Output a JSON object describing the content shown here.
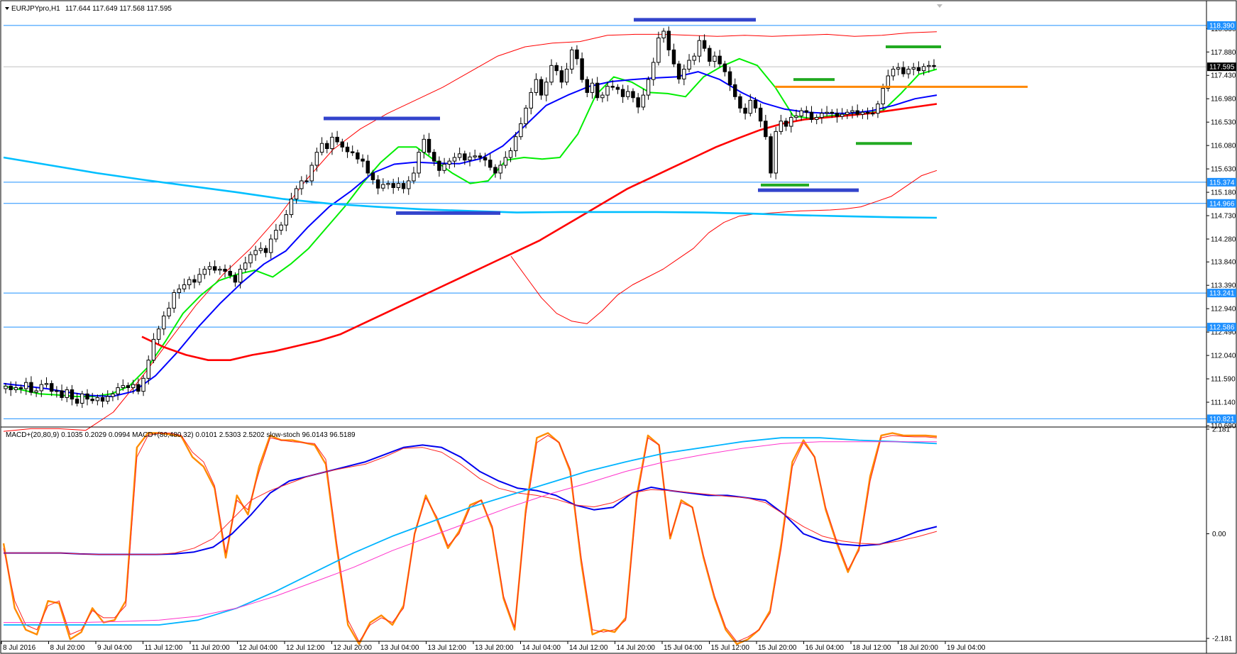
{
  "header": {
    "symbol": "EURJPYpro,H1",
    "ohlc": "117.644 117.649 117.568 117.595",
    "dropdown_icon": "triangle-down-icon"
  },
  "indicator_header": {
    "text": "MACD+(20,80,9) 0.1035 0.2029 0.0994   MACD+(80,480,32) 0.0101 2.5303 2.5202   slow-stoch 96.0143 96.5189"
  },
  "colors": {
    "background": "#ffffff",
    "axis": "#000000",
    "h_line": "#1e90ff",
    "price_tag": "#1e90ff",
    "current_tag": "#000000",
    "candle_bull": "#ffffff",
    "candle_bear": "#000000",
    "sma_green": "#00ee00",
    "sma_blue": "#0000ff",
    "sma_red": "#ff0000",
    "sma_cyan": "#00bfff",
    "bollinger": "#ff0000",
    "blue_marker": "#3344cc",
    "green_marker": "#22aa22",
    "orange_marker": "#ff8800",
    "stoch_main": "#ff8c00",
    "stoch_signal": "#ff2222",
    "macd_fast": "#0000ee",
    "macd_fast_signal": "#ff2222",
    "macd_slow": "#00b4ff",
    "macd_slow_signal": "#ff33cc"
  },
  "chart_data": [
    {
      "type": "candlestick",
      "title": "EURJPYpro,H1",
      "ylim": [
        110.69,
        118.58
      ],
      "y_ticks": [
        "118.330",
        "117.880",
        "117.430",
        "116.980",
        "116.530",
        "116.080",
        "115.630",
        "115.180",
        "114.730",
        "114.280",
        "113.840",
        "113.390",
        "112.940",
        "112.490",
        "112.040",
        "111.590",
        "111.140",
        "110.690"
      ],
      "x_ticks": [
        "8 Jul 2016",
        "8 Jul 20:00",
        "9 Jul 04:00",
        "11 Jul 12:00",
        "11 Jul 20:00",
        "12 Jul 04:00",
        "12 Jul 12:00",
        "12 Jul 20:00",
        "13 Jul 04:00",
        "13 Jul 12:00",
        "13 Jul 20:00",
        "14 Jul 04:00",
        "14 Jul 12:00",
        "14 Jul 20:00",
        "15 Jul 04:00",
        "15 Jul 12:00",
        "15 Jul 20:00",
        "16 Jul 04:00",
        "18 Jul 12:00",
        "18 Jul 20:00",
        "19 Jul 04:00"
      ],
      "horizontal_levels": [
        "118.390",
        "115.374",
        "114.966",
        "113.241",
        "112.586",
        "110.821"
      ],
      "current_price": "117.595",
      "closes": [
        111.45,
        111.38,
        111.42,
        111.4,
        111.52,
        111.33,
        111.36,
        111.48,
        111.5,
        111.35,
        111.36,
        111.23,
        111.38,
        111.2,
        111.12,
        111.3,
        111.2,
        111.17,
        111.23,
        111.16,
        111.25,
        111.3,
        111.42,
        111.46,
        111.42,
        111.48,
        111.35,
        111.6,
        111.95,
        112.35,
        112.55,
        112.8,
        112.95,
        113.25,
        113.32,
        113.4,
        113.5,
        113.45,
        113.6,
        113.7,
        113.75,
        113.68,
        113.7,
        113.66,
        113.58,
        113.45,
        113.7,
        113.82,
        113.98,
        114.06,
        114.1,
        114.02,
        114.28,
        114.45,
        114.55,
        114.75,
        115.05,
        115.25,
        115.4,
        115.4,
        115.7,
        115.95,
        116.12,
        116.02,
        116.24,
        116.15,
        116.05,
        115.96,
        115.94,
        115.82,
        115.78,
        115.55,
        115.42,
        115.26,
        115.33,
        115.35,
        115.27,
        115.35,
        115.25,
        115.4,
        115.55,
        115.95,
        116.2,
        115.95,
        115.78,
        115.6,
        115.72,
        115.78,
        115.85,
        115.92,
        115.8,
        115.86,
        115.88,
        115.85,
        115.8,
        115.66,
        115.55,
        115.7,
        115.85,
        115.98,
        116.25,
        116.5,
        116.8,
        117.1,
        117.35,
        117.05,
        117.3,
        117.62,
        117.52,
        117.3,
        117.55,
        117.92,
        117.75,
        117.35,
        117.1,
        117.28,
        117.0,
        117.05,
        117.22,
        117.2,
        117.16,
        117.02,
        117.12,
        117.0,
        116.82,
        117.05,
        117.35,
        117.68,
        118.15,
        118.28,
        117.92,
        117.65,
        117.36,
        117.55,
        117.72,
        117.8,
        118.1,
        117.95,
        117.7,
        117.8,
        117.65,
        117.5,
        117.25,
        117.02,
        116.8,
        116.7,
        116.95,
        116.8,
        116.55,
        116.25,
        115.55,
        116.35,
        116.55,
        116.45,
        116.62,
        116.65,
        116.75,
        116.72,
        116.58,
        116.62,
        116.7,
        116.72,
        116.7,
        116.64,
        116.68,
        116.72,
        116.75,
        116.68,
        116.72,
        116.7,
        116.7,
        116.88,
        117.18,
        117.42,
        117.55,
        117.58,
        117.46,
        117.55,
        117.58,
        117.52,
        117.6,
        117.62,
        117.6
      ],
      "series": [
        {
          "name": "",
          "color": "#00ee00",
          "values": [
            111.45,
            111.38,
            111.3,
            111.28,
            111.25,
            111.25,
            111.3,
            111.45,
            111.8,
            112.3,
            112.85,
            113.2,
            113.48,
            113.6,
            113.68,
            113.55,
            113.8,
            114.1,
            114.5,
            114.9,
            115.35,
            115.75,
            116.05,
            116.05,
            115.8,
            115.55,
            115.35,
            115.4,
            115.8,
            115.85,
            115.82,
            115.85,
            116.3,
            117.05,
            117.4,
            117.3,
            117.1,
            117.08,
            117.02,
            117.4,
            117.6,
            117.75,
            117.62,
            117.2,
            116.65,
            116.6,
            116.65,
            116.68,
            116.7,
            116.75,
            117.08,
            117.45,
            117.55
          ]
        },
        {
          "name": "",
          "color": "#0000ff",
          "values": [
            111.5,
            111.45,
            111.4,
            111.33,
            111.27,
            111.25,
            111.35,
            111.65,
            112.1,
            112.6,
            113.05,
            113.45,
            113.8,
            114.05,
            114.5,
            114.9,
            115.2,
            115.55,
            115.72,
            115.76,
            115.74,
            115.73,
            115.83,
            116.07,
            116.45,
            116.85,
            117.05,
            117.22,
            117.31,
            117.35,
            117.38,
            117.4,
            117.5,
            117.35,
            117.1,
            116.9,
            116.78,
            116.72,
            116.7,
            116.7,
            116.75,
            116.85,
            116.98,
            117.05
          ]
        },
        {
          "name": "",
          "color": "#ff0000",
          "values": [
            112.4,
            112.2,
            112.05,
            111.95,
            111.95,
            112.05,
            112.12,
            112.22,
            112.32,
            112.45,
            112.65,
            112.85,
            113.05,
            113.25,
            113.45,
            113.65,
            113.85,
            114.05,
            114.25,
            114.5,
            114.75,
            115.0,
            115.25,
            115.45,
            115.65,
            115.85,
            116.05,
            116.22,
            116.38,
            116.5,
            116.58,
            116.62,
            116.66,
            116.7,
            116.76,
            116.82,
            116.88
          ]
        },
        {
          "name": "",
          "color": "#00bfff",
          "values": [
            115.85,
            115.7,
            115.55,
            115.42,
            115.3,
            115.18,
            115.05,
            114.96,
            114.9,
            114.85,
            114.82,
            114.79,
            114.8,
            114.8,
            114.8,
            114.79,
            114.77,
            114.74,
            114.72,
            114.7,
            114.69
          ]
        },
        {
          "name": "",
          "color": "#ff0000",
          "role": "bollinger-upper",
          "values": [
            110.58,
            110.63,
            110.63,
            110.6,
            110.95,
            111.6,
            112.3,
            113.0,
            113.6,
            114.1,
            114.7,
            115.4,
            116.0,
            116.4,
            116.7,
            116.95,
            117.2,
            117.5,
            117.8,
            117.98,
            118.05,
            118.08,
            118.2,
            118.22,
            118.22,
            118.2,
            118.18,
            118.2,
            118.18,
            118.2,
            118.22,
            118.18,
            118.2,
            118.25,
            118.27
          ]
        },
        {
          "name": "",
          "color": "#ff0000",
          "role": "bollinger-lower",
          "values": [
            113.95,
            113.55,
            113.15,
            112.85,
            112.7,
            112.65,
            112.9,
            113.2,
            113.4,
            113.55,
            113.7,
            113.9,
            114.1,
            114.4,
            114.6,
            114.72,
            114.76,
            114.78,
            114.8,
            114.82,
            114.83,
            114.84,
            114.86,
            114.9,
            115.0,
            115.1,
            115.3,
            115.5,
            115.6
          ]
        }
      ]
    },
    {
      "type": "line",
      "title": "MACD+(20,80,9) 0.1035 0.2029 0.0994   MACD+(80,480,32) 0.0101 2.5303 2.5202   slow-stoch 96.0143 96.5189",
      "ylim": [
        -2.181,
        2.181
      ],
      "y_ticks": [
        "2.181",
        "0.00",
        "-2.181"
      ],
      "series": [
        {
          "name": "",
          "color": "#ff8c00",
          "values": [
            -0.2,
            -1.55,
            -2.0,
            -2.1,
            -1.4,
            -1.45,
            -2.2,
            -2.05,
            -1.55,
            -1.85,
            -1.8,
            -1.4,
            1.8,
            2.1,
            2.1,
            2.07,
            2.03,
            1.6,
            1.4,
            0.95,
            -0.5,
            0.8,
            0.4,
            1.4,
            2.05,
            1.95,
            1.95,
            1.9,
            1.85,
            1.45,
            -0.3,
            -1.9,
            -2.3,
            -1.85,
            -1.7,
            -1.9,
            -1.5,
            0.0,
            0.8,
            0.3,
            -0.3,
            0.05,
            0.6,
            0.7,
            0.1,
            -1.35,
            -2.0,
            0.5,
            2.0,
            2.1,
            1.9,
            1.3,
            -0.6,
            -2.1,
            -2.0,
            -2.05,
            -1.75,
            0.8,
            2.05,
            1.85,
            -0.1,
            0.7,
            0.55,
            -0.5,
            -1.35,
            -2.0,
            -2.3,
            -2.2,
            -2.0,
            -1.6,
            -0.2,
            1.5,
            1.95,
            1.6,
            0.5,
            -0.2,
            -0.8,
            -0.3,
            1.2,
            2.05,
            2.1,
            2.05,
            2.05,
            2.05,
            2.03
          ]
        },
        {
          "name": "",
          "color": "#ff2222",
          "values": [
            -0.3,
            -1.4,
            -1.9,
            -2.0,
            -1.5,
            -1.4,
            -2.1,
            -2.0,
            -1.6,
            -1.75,
            -1.75,
            -1.5,
            1.6,
            2.05,
            2.1,
            2.1,
            2.05,
            1.7,
            1.5,
            1.0,
            -0.4,
            0.7,
            0.5,
            1.3,
            2.0,
            1.95,
            1.92,
            1.9,
            1.88,
            1.55,
            -0.2,
            -1.8,
            -2.25,
            -1.9,
            -1.75,
            -1.85,
            -1.55,
            0.0,
            0.75,
            0.35,
            -0.25,
            0.0,
            0.55,
            0.7,
            0.15,
            -1.3,
            -1.95,
            0.4,
            1.9,
            2.05,
            1.9,
            1.35,
            -0.5,
            -2.0,
            -2.05,
            -2.0,
            -1.8,
            0.7,
            2.0,
            1.85,
            -0.05,
            0.65,
            0.55,
            -0.45,
            -1.3,
            -1.95,
            -2.25,
            -2.15,
            -2.0,
            -1.65,
            -0.3,
            1.4,
            1.9,
            1.6,
            0.55,
            -0.15,
            -0.75,
            -0.35,
            1.1,
            2.0,
            2.05,
            2.03,
            2.02,
            2.02,
            2.0
          ]
        },
        {
          "name": "",
          "color": "#0000ee",
          "values": [
            -0.4,
            -0.4,
            -0.4,
            -0.4,
            -0.42,
            -0.43,
            -0.43,
            -0.43,
            -0.43,
            -0.42,
            -0.38,
            -0.28,
            0.0,
            0.4,
            0.85,
            1.1,
            1.2,
            1.3,
            1.4,
            1.5,
            1.65,
            1.8,
            1.85,
            1.8,
            1.6,
            1.3,
            1.1,
            0.95,
            0.9,
            0.8,
            0.6,
            0.5,
            0.55,
            0.85,
            0.97,
            0.9,
            0.85,
            0.8,
            0.8,
            0.75,
            0.7,
            0.4,
            0.0,
            -0.15,
            -0.22,
            -0.25,
            -0.22,
            -0.1,
            0.05,
            0.15
          ]
        },
        {
          "name": "",
          "color": "#ff2222",
          "values": [
            -0.4,
            -0.4,
            -0.4,
            -0.4,
            -0.42,
            -0.43,
            -0.43,
            -0.43,
            -0.43,
            -0.4,
            -0.3,
            -0.1,
            0.3,
            0.7,
            0.9,
            1.05,
            1.2,
            1.3,
            1.38,
            1.45,
            1.6,
            1.78,
            1.8,
            1.7,
            1.45,
            1.15,
            0.95,
            0.85,
            0.8,
            0.72,
            0.6,
            0.56,
            0.65,
            0.85,
            0.92,
            0.9,
            0.86,
            0.82,
            0.78,
            0.75,
            0.65,
            0.4,
            0.15,
            -0.05,
            -0.15,
            -0.2,
            -0.22,
            -0.15,
            -0.06,
            0.05
          ]
        },
        {
          "name": "",
          "color": "#00b4ff",
          "values": [
            -1.9,
            -1.9,
            -1.9,
            -1.9,
            -1.9,
            -1.8,
            -1.55,
            -1.2,
            -0.8,
            -0.4,
            -0.05,
            0.25,
            0.55,
            0.8,
            1.05,
            1.3,
            1.5,
            1.68,
            1.8,
            1.92,
            2.0,
            2.0,
            1.95,
            1.92,
            1.88
          ]
        },
        {
          "name": "",
          "color": "#ff33cc",
          "values": [
            -1.85,
            -1.85,
            -1.85,
            -1.83,
            -1.8,
            -1.72,
            -1.55,
            -1.3,
            -1.0,
            -0.7,
            -0.35,
            -0.05,
            0.25,
            0.55,
            0.82,
            1.05,
            1.3,
            1.5,
            1.65,
            1.78,
            1.88,
            1.92,
            1.92,
            1.92,
            1.92
          ]
        }
      ]
    }
  ]
}
